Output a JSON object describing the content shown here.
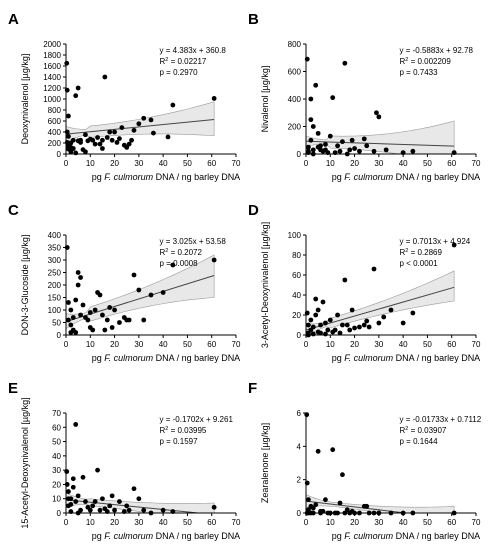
{
  "figure": {
    "x_axis_label_parts": [
      "pg ",
      "F. culmorum",
      " DNA / ng barley DNA"
    ],
    "x_ticks": [
      0,
      10,
      20,
      30,
      40,
      50,
      60,
      70
    ]
  },
  "chart_data": [
    {
      "panel": "A",
      "type": "scatter",
      "ylabel": "Deoxynivalenol [µg/kg]",
      "xlim": [
        0,
        70
      ],
      "ylim": [
        0,
        2000
      ],
      "yticks": [
        0,
        200,
        400,
        600,
        800,
        1000,
        1200,
        1400,
        1600,
        1800,
        2000
      ],
      "annotation": [
        "y = 4.383x + 360.8",
        "R² = 0.02217",
        "p = 0.2970"
      ],
      "fit": {
        "slope": 4.383,
        "intercept": 360.8,
        "x_range": [
          0,
          61
        ]
      },
      "ci": {
        "low_start": 220,
        "low_end": 330,
        "high_start": 500,
        "high_end": 950,
        "min_at": 10
      },
      "points": [
        [
          0.3,
          1650
        ],
        [
          0.5,
          1160
        ],
        [
          1,
          690
        ],
        [
          0.5,
          400
        ],
        [
          1,
          320
        ],
        [
          0.5,
          210
        ],
        [
          1,
          150
        ],
        [
          2,
          120
        ],
        [
          1,
          90
        ],
        [
          3,
          100
        ],
        [
          2,
          40
        ],
        [
          4,
          20
        ],
        [
          4,
          1060
        ],
        [
          5,
          1200
        ],
        [
          5,
          240
        ],
        [
          6,
          210
        ],
        [
          7,
          80
        ],
        [
          8,
          40
        ],
        [
          9,
          240
        ],
        [
          10,
          270
        ],
        [
          11,
          250
        ],
        [
          12,
          180
        ],
        [
          13,
          300
        ],
        [
          14,
          180
        ],
        [
          15,
          250
        ],
        [
          16,
          1400
        ],
        [
          17,
          300
        ],
        [
          18,
          400
        ],
        [
          19,
          250
        ],
        [
          20,
          400
        ],
        [
          21,
          210
        ],
        [
          22,
          280
        ],
        [
          23,
          480
        ],
        [
          24,
          160
        ],
        [
          25,
          120
        ],
        [
          26,
          180
        ],
        [
          27,
          250
        ],
        [
          28,
          430
        ],
        [
          30,
          550
        ],
        [
          32,
          650
        ],
        [
          35,
          620
        ],
        [
          36,
          380
        ],
        [
          42,
          310
        ],
        [
          44,
          890
        ],
        [
          61,
          1010
        ],
        [
          8,
          350
        ],
        [
          6,
          250
        ],
        [
          3,
          250
        ],
        [
          2,
          200
        ],
        [
          15,
          100
        ]
      ]
    },
    {
      "panel": "B",
      "type": "scatter",
      "ylabel": "Nivalenol [µg/kg]",
      "xlim": [
        0,
        70
      ],
      "ylim": [
        0,
        800
      ],
      "yticks": [
        0,
        200,
        400,
        600,
        800
      ],
      "annotation": [
        "y = -0.5883x + 92.78",
        "R² = 0.002209",
        "p = 0.7433"
      ],
      "fit": {
        "slope": -0.5883,
        "intercept": 92.78,
        "x_range": [
          0,
          61
        ]
      },
      "ci": {
        "low_start": 55,
        "low_end": -70,
        "high_start": 130,
        "high_end": 240,
        "min_at": 10
      },
      "points": [
        [
          0.5,
          690
        ],
        [
          2,
          400
        ],
        [
          3,
          0
        ],
        [
          1,
          20
        ],
        [
          1,
          50
        ],
        [
          2,
          100
        ],
        [
          3,
          30
        ],
        [
          4,
          500
        ],
        [
          5,
          50
        ],
        [
          5,
          150
        ],
        [
          6,
          60
        ],
        [
          7,
          20
        ],
        [
          8,
          30
        ],
        [
          9,
          10
        ],
        [
          10,
          130
        ],
        [
          11,
          410
        ],
        [
          12,
          10
        ],
        [
          13,
          60
        ],
        [
          14,
          20
        ],
        [
          15,
          90
        ],
        [
          16,
          660
        ],
        [
          17,
          0
        ],
        [
          18,
          30
        ],
        [
          19,
          100
        ],
        [
          20,
          40
        ],
        [
          22,
          20
        ],
        [
          24,
          110
        ],
        [
          25,
          60
        ],
        [
          28,
          20
        ],
        [
          29,
          300
        ],
        [
          30,
          270
        ],
        [
          33,
          30
        ],
        [
          40,
          10
        ],
        [
          44,
          20
        ],
        [
          61,
          10
        ],
        [
          2,
          250
        ],
        [
          3,
          200
        ],
        [
          6,
          30
        ],
        [
          8,
          70
        ],
        [
          1,
          10
        ]
      ]
    },
    {
      "panel": "C",
      "type": "scatter",
      "ylabel": "DON-3-Glucoside [µg/kg]",
      "xlim": [
        0,
        70
      ],
      "ylim": [
        0,
        400
      ],
      "yticks": [
        0,
        50,
        100,
        150,
        200,
        250,
        300,
        350,
        400
      ],
      "annotation": [
        "y = 3.025x + 53.58",
        "R² = 0.2072",
        "p = 0.0008"
      ],
      "fit": {
        "slope": 3.025,
        "intercept": 53.58,
        "x_range": [
          0,
          61
        ]
      },
      "ci": {
        "low_start": 25,
        "low_end": 150,
        "high_start": 85,
        "high_end": 320,
        "min_at": 10
      },
      "points": [
        [
          0.5,
          350
        ],
        [
          1,
          130
        ],
        [
          1,
          60
        ],
        [
          2,
          100
        ],
        [
          2,
          40
        ],
        [
          3,
          20
        ],
        [
          3,
          70
        ],
        [
          4,
          10
        ],
        [
          5,
          250
        ],
        [
          5,
          200
        ],
        [
          6,
          230
        ],
        [
          6,
          80
        ],
        [
          7,
          120
        ],
        [
          8,
          70
        ],
        [
          9,
          60
        ],
        [
          10,
          90
        ],
        [
          10,
          30
        ],
        [
          11,
          20
        ],
        [
          12,
          100
        ],
        [
          13,
          170
        ],
        [
          14,
          160
        ],
        [
          15,
          80
        ],
        [
          16,
          20
        ],
        [
          17,
          60
        ],
        [
          18,
          110
        ],
        [
          19,
          30
        ],
        [
          20,
          100
        ],
        [
          22,
          50
        ],
        [
          24,
          70
        ],
        [
          25,
          60
        ],
        [
          26,
          60
        ],
        [
          28,
          240
        ],
        [
          30,
          180
        ],
        [
          32,
          60
        ],
        [
          35,
          160
        ],
        [
          40,
          170
        ],
        [
          44,
          280
        ],
        [
          61,
          300
        ],
        [
          4,
          140
        ],
        [
          2,
          10
        ]
      ]
    },
    {
      "panel": "D",
      "type": "scatter",
      "ylabel": "3-Acetyl-Deoxynivalenol [µg/kg]",
      "xlim": [
        0,
        70
      ],
      "ylim": [
        0,
        100
      ],
      "yticks": [
        0,
        20,
        40,
        60,
        80,
        100
      ],
      "annotation": [
        "y = 0.7013x + 4.924",
        "R² = 0.2869",
        "p < 0.0001"
      ],
      "fit": {
        "slope": 0.7013,
        "intercept": 4.924,
        "x_range": [
          0,
          61
        ]
      },
      "ci": {
        "low_start": -2,
        "low_end": 34,
        "high_start": 11,
        "high_end": 64,
        "min_at": 10
      },
      "points": [
        [
          0.5,
          22
        ],
        [
          1,
          10
        ],
        [
          1,
          2
        ],
        [
          2,
          15
        ],
        [
          2,
          5
        ],
        [
          3,
          1
        ],
        [
          3,
          8
        ],
        [
          4,
          36
        ],
        [
          5,
          25
        ],
        [
          5,
          3
        ],
        [
          6,
          10
        ],
        [
          7,
          33
        ],
        [
          8,
          12
        ],
        [
          9,
          5
        ],
        [
          10,
          15
        ],
        [
          11,
          3
        ],
        [
          12,
          5
        ],
        [
          13,
          20
        ],
        [
          14,
          2
        ],
        [
          15,
          10
        ],
        [
          16,
          55
        ],
        [
          17,
          10
        ],
        [
          18,
          5
        ],
        [
          19,
          25
        ],
        [
          20,
          7
        ],
        [
          22,
          8
        ],
        [
          24,
          10
        ],
        [
          25,
          14
        ],
        [
          26,
          8
        ],
        [
          28,
          66
        ],
        [
          30,
          12
        ],
        [
          32,
          18
        ],
        [
          35,
          25
        ],
        [
          40,
          12
        ],
        [
          44,
          22
        ],
        [
          61,
          90
        ],
        [
          4,
          20
        ],
        [
          6,
          2
        ],
        [
          8,
          1
        ],
        [
          1,
          0
        ]
      ]
    },
    {
      "panel": "E",
      "type": "scatter",
      "ylabel": "15-Acetyl-Deoxynivalenol [µg/kg]",
      "xlim": [
        0,
        70
      ],
      "ylim": [
        0,
        70
      ],
      "yticks": [
        0,
        10,
        20,
        30,
        40,
        50,
        60,
        70
      ],
      "annotation": [
        "y = -0.1702x + 9.261",
        "R² = 0.03995",
        "p = 0.1597"
      ],
      "fit": {
        "slope": -0.1702,
        "intercept": 9.261,
        "x_range": [
          0,
          61
        ]
      },
      "ci": {
        "low_start": 4,
        "low_end": -8,
        "high_start": 14,
        "high_end": 7,
        "min_at": 10
      },
      "points": [
        [
          0.3,
          29
        ],
        [
          0.5,
          20
        ],
        [
          1,
          15
        ],
        [
          1,
          5
        ],
        [
          2,
          10
        ],
        [
          2,
          1
        ],
        [
          3,
          18
        ],
        [
          4,
          62
        ],
        [
          4,
          8
        ],
        [
          5,
          12
        ],
        [
          6,
          2
        ],
        [
          7,
          25
        ],
        [
          8,
          8
        ],
        [
          9,
          4
        ],
        [
          10,
          2
        ],
        [
          11,
          5
        ],
        [
          12,
          8
        ],
        [
          13,
          30
        ],
        [
          14,
          2
        ],
        [
          15,
          10
        ],
        [
          16,
          3
        ],
        [
          17,
          1
        ],
        [
          18,
          5
        ],
        [
          19,
          12
        ],
        [
          20,
          2
        ],
        [
          22,
          8
        ],
        [
          24,
          1
        ],
        [
          25,
          5
        ],
        [
          26,
          2
        ],
        [
          28,
          17
        ],
        [
          30,
          10
        ],
        [
          32,
          2
        ],
        [
          35,
          0
        ],
        [
          40,
          2
        ],
        [
          44,
          1
        ],
        [
          61,
          4
        ],
        [
          3,
          24
        ],
        [
          1,
          10
        ],
        [
          5,
          0
        ],
        [
          2,
          6
        ]
      ]
    },
    {
      "panel": "F",
      "type": "scatter",
      "ylabel": "Zearalenone [µg/kg]",
      "xlim": [
        0,
        70
      ],
      "ylim": [
        0,
        6
      ],
      "yticks": [
        0,
        2,
        4,
        6
      ],
      "annotation": [
        "y = -0.01733x + 0.7112",
        "R² = 0.03907",
        "p = 0.1644"
      ],
      "fit": {
        "slope": -0.01733,
        "intercept": 0.7112,
        "x_range": [
          0,
          61
        ]
      },
      "ci": {
        "low_start": 0.3,
        "low_end": -0.7,
        "high_start": 1.1,
        "high_end": 0.4,
        "min_at": 10
      },
      "points": [
        [
          0.3,
          5.9
        ],
        [
          0.5,
          1.8
        ],
        [
          1,
          0.8
        ],
        [
          1,
          0.2
        ],
        [
          2,
          0
        ],
        [
          3,
          0
        ],
        [
          4,
          0.5
        ],
        [
          5,
          3.7
        ],
        [
          6,
          0
        ],
        [
          7,
          0.1
        ],
        [
          8,
          0.8
        ],
        [
          9,
          0
        ],
        [
          10,
          0
        ],
        [
          11,
          3.8
        ],
        [
          12,
          0
        ],
        [
          13,
          0
        ],
        [
          14,
          0.6
        ],
        [
          15,
          2.3
        ],
        [
          16,
          0
        ],
        [
          17,
          0.2
        ],
        [
          18,
          0
        ],
        [
          19,
          0.1
        ],
        [
          20,
          0
        ],
        [
          22,
          0
        ],
        [
          24,
          0.4
        ],
        [
          25,
          0.4
        ],
        [
          26,
          0
        ],
        [
          28,
          0
        ],
        [
          30,
          0
        ],
        [
          35,
          0
        ],
        [
          40,
          0
        ],
        [
          44,
          0
        ],
        [
          61,
          0
        ],
        [
          2,
          0.4
        ],
        [
          3,
          0.3
        ],
        [
          1,
          0
        ],
        [
          6,
          0.1
        ],
        [
          0.5,
          0
        ]
      ]
    }
  ]
}
